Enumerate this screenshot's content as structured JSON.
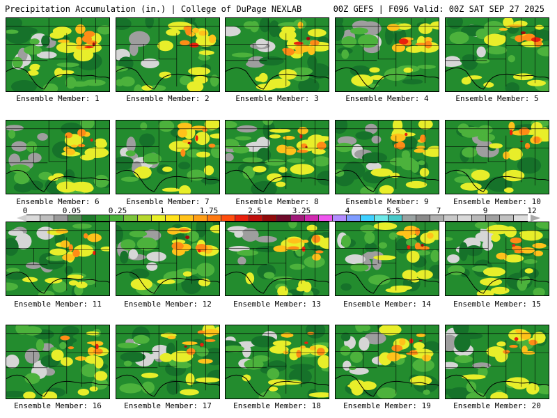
{
  "header": {
    "title": "Precipitation Accumulation (in.) | College of DuPage NEXLAB",
    "run_info": "00Z GEFS | F096 Valid: 00Z SAT SEP 27 2025"
  },
  "colorbar": {
    "tick_labels": [
      "0",
      "0.05",
      "0.25",
      "1",
      "1.75",
      "2.5",
      "3.25",
      "4",
      "5.5",
      "7",
      "9",
      "12"
    ],
    "colors": [
      "#d9d9d9",
      "#bdbdbd",
      "#9a9a9a",
      "#5a8a5a",
      "#1f7a2b",
      "#2f9a2f",
      "#49b23a",
      "#7cc43c",
      "#b6d72e",
      "#e9ef28",
      "#ffe21c",
      "#ffc21a",
      "#ff9f17",
      "#ff7a12",
      "#ff4e0e",
      "#e8200d",
      "#c0100c",
      "#900a0a",
      "#6e0a2a",
      "#a01a7a",
      "#d02ab0",
      "#ee55ee",
      "#b28cff",
      "#7f9cff",
      "#3fd0ff",
      "#6ee8e8",
      "#48c8c8",
      "#9aa2a2",
      "#8a8a8a",
      "#b0b0b0",
      "#c8c8c8",
      "#d8d8d8",
      "#b8b8b8",
      "#a0a0a0",
      "#c0c0c0",
      "#dddddd"
    ]
  },
  "members": [
    {
      "label": "Ensemble Member: 1"
    },
    {
      "label": "Ensemble Member: 2"
    },
    {
      "label": "Ensemble Member: 3"
    },
    {
      "label": "Ensemble Member: 4"
    },
    {
      "label": "Ensemble Member: 5"
    },
    {
      "label": "Ensemble Member: 6"
    },
    {
      "label": "Ensemble Member: 7"
    },
    {
      "label": "Ensemble Member: 8"
    },
    {
      "label": "Ensemble Member: 9"
    },
    {
      "label": "Ensemble Member: 10"
    },
    {
      "label": "Ensemble Member: 11"
    },
    {
      "label": "Ensemble Member: 12"
    },
    {
      "label": "Ensemble Member: 13"
    },
    {
      "label": "Ensemble Member: 14"
    },
    {
      "label": "Ensemble Member: 15"
    },
    {
      "label": "Ensemble Member: 16"
    },
    {
      "label": "Ensemble Member: 17"
    },
    {
      "label": "Ensemble Member: 18"
    },
    {
      "label": "Ensemble Member: 19"
    },
    {
      "label": "Ensemble Member: 20"
    }
  ],
  "map_colors": {
    "base": "#238c2e",
    "dark_green": "#16722a",
    "light_green": "#4cb23c",
    "gray": "#9e9e9e",
    "light_gray": "#d6d6d6",
    "yellow": "#e8ee2a",
    "gold": "#ffc21a",
    "orange": "#ff8c16",
    "red": "#e8200d",
    "dark_red": "#a00c0c",
    "magenta": "#c020a0"
  }
}
